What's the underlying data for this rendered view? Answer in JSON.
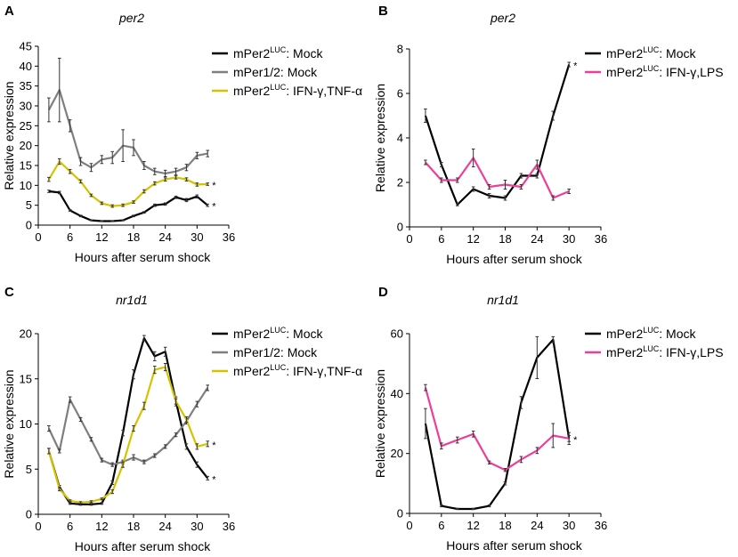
{
  "chart_data": [
    {
      "panel": "A",
      "type": "line",
      "title": "per2",
      "xlabel": "Hours after serum shock",
      "ylabel": "Relative expression",
      "xlim": [
        0,
        36
      ],
      "ylim": [
        0,
        45
      ],
      "xticks": [
        0,
        6,
        12,
        18,
        24,
        30,
        36
      ],
      "yticks": [
        0,
        5,
        10,
        15,
        20,
        25,
        30,
        35,
        40,
        45
      ],
      "series": [
        {
          "name": "mPer2 LUC: Mock",
          "legend_main": "mPer2",
          "legend_sup": "LUC",
          "legend_rest": ": Mock",
          "color": "#000000",
          "star": "*",
          "x": [
            2,
            4,
            6,
            8,
            10,
            12,
            14,
            16,
            18,
            20,
            22,
            24,
            26,
            28,
            30,
            32
          ],
          "y": [
            8.5,
            8.2,
            3.7,
            2.3,
            1.2,
            1.0,
            1.0,
            1.2,
            2.3,
            3.2,
            5.0,
            5.3,
            7.0,
            6.3,
            7.2,
            5.0
          ],
          "err": [
            0.3,
            0.3,
            0.2,
            0.2,
            0.1,
            0.1,
            0.1,
            0.1,
            0.2,
            0.2,
            0.3,
            0.3,
            0.3,
            0.4,
            0.4,
            0.3
          ]
        },
        {
          "name": "mPer1/2: Mock",
          "legend_main": "mPer1/2",
          "legend_sup": "",
          "legend_rest": ": Mock",
          "color": "#7f7f7f",
          "star": "",
          "x": [
            2,
            4,
            6,
            8,
            10,
            12,
            14,
            16,
            18,
            20,
            22,
            24,
            26,
            28,
            30,
            32
          ],
          "y": [
            29,
            34,
            25,
            16,
            14.5,
            16.5,
            17,
            20,
            19.5,
            15,
            13.5,
            13,
            13.5,
            14.5,
            17.5,
            18
          ],
          "err": [
            3,
            8,
            1.5,
            1,
            1,
            1,
            1.5,
            4,
            2,
            1,
            0.8,
            0.8,
            0.8,
            0.8,
            0.8,
            0.8
          ]
        },
        {
          "name": "mPer2 LUC: IFN-γ,TNF-α",
          "legend_main": "mPer2",
          "legend_sup": "LUC",
          "legend_rest": ": IFN-γ,TNF-α",
          "color": "#d4c400",
          "star": "*",
          "x": [
            2,
            4,
            6,
            8,
            10,
            12,
            14,
            16,
            18,
            20,
            22,
            24,
            26,
            28,
            30,
            32
          ],
          "y": [
            11.5,
            16,
            13.5,
            11,
            7.5,
            5.5,
            4.8,
            5.0,
            5.8,
            8.5,
            10.5,
            11.5,
            12,
            11.5,
            10.2,
            10.3
          ],
          "err": [
            0.5,
            0.7,
            0.5,
            0.4,
            0.3,
            0.3,
            0.3,
            0.3,
            0.3,
            0.4,
            0.4,
            0.4,
            0.4,
            0.4,
            0.4,
            0.3
          ]
        }
      ]
    },
    {
      "panel": "B",
      "type": "line",
      "title": "per2",
      "xlabel": "Hours after serum shock",
      "ylabel": "Relative expression",
      "xlim": [
        0,
        36
      ],
      "ylim": [
        0,
        8
      ],
      "xticks": [
        0,
        6,
        12,
        18,
        24,
        30,
        36
      ],
      "yticks": [
        0,
        2,
        4,
        6,
        8
      ],
      "series": [
        {
          "name": "mPer2 LUC: Mock",
          "legend_main": "mPer2",
          "legend_sup": "LUC",
          "legend_rest": ": Mock",
          "color": "#000000",
          "star": "*",
          "x": [
            3,
            6,
            9,
            12,
            15,
            18,
            21,
            24,
            27,
            30
          ],
          "y": [
            5.0,
            2.8,
            1.0,
            1.7,
            1.4,
            1.3,
            2.3,
            2.3,
            5.0,
            7.3
          ],
          "err": [
            0.3,
            0.1,
            0.05,
            0.1,
            0.1,
            0.1,
            0.1,
            0.1,
            0.2,
            0.1
          ]
        },
        {
          "name": "mPer2 LUC: IFN-γ,LPS",
          "legend_main": "mPer2",
          "legend_sup": "LUC",
          "legend_rest": ": IFN-γ,LPS",
          "color": "#ec3f99",
          "star": "",
          "x": [
            3,
            6,
            9,
            12,
            15,
            18,
            21,
            24,
            27,
            30
          ],
          "y": [
            2.9,
            2.1,
            2.1,
            3.1,
            1.8,
            1.9,
            1.8,
            2.8,
            1.3,
            1.6
          ],
          "err": [
            0.1,
            0.1,
            0.1,
            0.4,
            0.1,
            0.2,
            0.1,
            0.2,
            0.1,
            0.1
          ]
        }
      ]
    },
    {
      "panel": "C",
      "type": "line",
      "title": "nr1d1",
      "xlabel": "Hours after serum shock",
      "ylabel": "Relative expression",
      "xlim": [
        0,
        36
      ],
      "ylim": [
        0,
        20
      ],
      "xticks": [
        0,
        6,
        12,
        18,
        24,
        30,
        36
      ],
      "yticks": [
        0,
        5,
        10,
        15,
        20
      ],
      "series": [
        {
          "name": "mPer2 LUC: Mock",
          "legend_main": "mPer2",
          "legend_sup": "LUC",
          "legend_rest": ": Mock",
          "color": "#000000",
          "star": "*",
          "x": [
            2,
            4,
            6,
            8,
            10,
            12,
            14,
            16,
            18,
            20,
            22,
            24,
            26,
            28,
            30,
            32
          ],
          "y": [
            7.0,
            3.0,
            1.2,
            1.1,
            1.1,
            1.2,
            3.5,
            9.0,
            15.5,
            19.5,
            17.5,
            18.0,
            12.5,
            7.5,
            5.5,
            4.0
          ],
          "err": [
            0.3,
            0.2,
            0.1,
            0.1,
            0.1,
            0.1,
            0.2,
            0.3,
            0.5,
            0.3,
            0.5,
            0.5,
            0.5,
            0.3,
            0.3,
            0.2
          ]
        },
        {
          "name": "mPer1/2: Mock",
          "legend_main": "mPer1/2",
          "legend_sup": "",
          "legend_rest": ": Mock",
          "color": "#7f7f7f",
          "star": "",
          "x": [
            2,
            4,
            6,
            8,
            10,
            12,
            14,
            16,
            18,
            20,
            22,
            24,
            26,
            28,
            30,
            32
          ],
          "y": [
            9.5,
            7.0,
            12.7,
            10.5,
            8.3,
            6.0,
            5.5,
            5.8,
            6.3,
            5.8,
            6.5,
            7.5,
            8.8,
            10.3,
            12.2,
            14.0
          ],
          "err": [
            0.3,
            0.2,
            0.3,
            0.2,
            0.2,
            0.2,
            0.2,
            0.2,
            0.3,
            0.2,
            0.2,
            0.2,
            0.2,
            0.3,
            0.3,
            0.3
          ]
        },
        {
          "name": "mPer2 LUC: IFN-γ,TNF-α",
          "legend_main": "mPer2",
          "legend_sup": "LUC",
          "legend_rest": ": IFN-γ,TNF-α",
          "color": "#d4c400",
          "star": "*",
          "x": [
            2,
            4,
            6,
            8,
            10,
            12,
            14,
            16,
            18,
            20,
            22,
            24,
            26,
            28,
            30,
            32
          ],
          "y": [
            7.0,
            2.8,
            1.5,
            1.3,
            1.4,
            1.7,
            2.5,
            5.5,
            9.5,
            12.0,
            16.0,
            16.3,
            12.5,
            10.5,
            7.5,
            7.8
          ],
          "err": [
            0.3,
            0.2,
            0.1,
            0.1,
            0.1,
            0.1,
            0.2,
            0.3,
            0.3,
            0.4,
            0.4,
            0.4,
            0.3,
            0.3,
            0.3,
            0.3
          ]
        }
      ]
    },
    {
      "panel": "D",
      "type": "line",
      "title": "nr1d1",
      "xlabel": "Hours after serum shock",
      "ylabel": "Relative expression",
      "xlim": [
        0,
        36
      ],
      "ylim": [
        0,
        60
      ],
      "xticks": [
        0,
        6,
        12,
        18,
        24,
        30,
        36
      ],
      "yticks": [
        0,
        20,
        40,
        60
      ],
      "series": [
        {
          "name": "mPer2 LUC: Mock",
          "legend_main": "mPer2",
          "legend_sup": "LUC",
          "legend_rest": ": Mock",
          "color": "#000000",
          "star": "*",
          "x": [
            3,
            6,
            9,
            12,
            15,
            18,
            21,
            24,
            27,
            30
          ],
          "y": [
            30,
            2.5,
            1.5,
            1.5,
            2.5,
            10,
            37,
            52,
            58,
            25
          ],
          "err": [
            5,
            0.3,
            0.2,
            0.2,
            0.3,
            0.5,
            2,
            7,
            1,
            2
          ]
        },
        {
          "name": "mPer2 LUC: IFN-γ,LPS",
          "legend_main": "mPer2",
          "legend_sup": "LUC",
          "legend_rest": ": IFN-γ,LPS",
          "color": "#ec3f99",
          "star": "",
          "x": [
            3,
            6,
            9,
            12,
            15,
            18,
            21,
            24,
            27,
            30
          ],
          "y": [
            42,
            22.5,
            24.5,
            26.5,
            17,
            14.5,
            18,
            21,
            26,
            25
          ],
          "err": [
            1,
            1,
            1,
            1,
            0.5,
            0.5,
            1,
            1,
            4,
            1
          ]
        }
      ]
    }
  ]
}
